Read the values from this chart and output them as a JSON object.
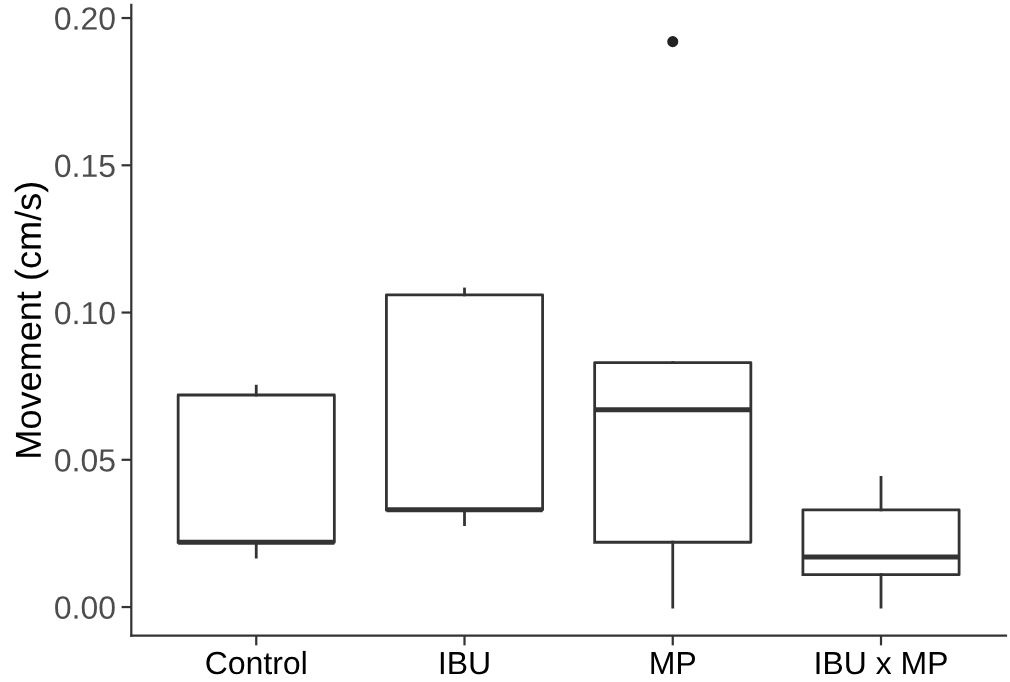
{
  "chart_data": {
    "type": "box",
    "ylabel": "Movement (cm/s)",
    "categories": [
      "Control",
      "IBU",
      "MP",
      "IBU x MP"
    ],
    "boxes": [
      {
        "low": 0.017,
        "q1": 0.022,
        "median": 0.022,
        "q3": 0.072,
        "high": 0.075
      },
      {
        "low": 0.028,
        "q1": 0.033,
        "median": 0.033,
        "q3": 0.106,
        "high": 0.108
      },
      {
        "low": 0.0,
        "q1": 0.022,
        "median": 0.067,
        "q3": 0.083,
        "high": 0.083,
        "outliers": [
          0.192
        ]
      },
      {
        "low": 0.0,
        "q1": 0.011,
        "median": 0.017,
        "q3": 0.033,
        "high": 0.044
      }
    ],
    "color": "#333333",
    "ylim": [
      -0.0097,
      0.2045
    ],
    "yticks": [
      {
        "value": 0,
        "label": "0.00"
      },
      {
        "value": 0.05,
        "label": "0.05"
      },
      {
        "value": 0.1,
        "label": "0.10"
      },
      {
        "value": 0.15,
        "label": "0.15"
      },
      {
        "value": 0.2,
        "label": "0.20"
      }
    ],
    "grid": false
  }
}
